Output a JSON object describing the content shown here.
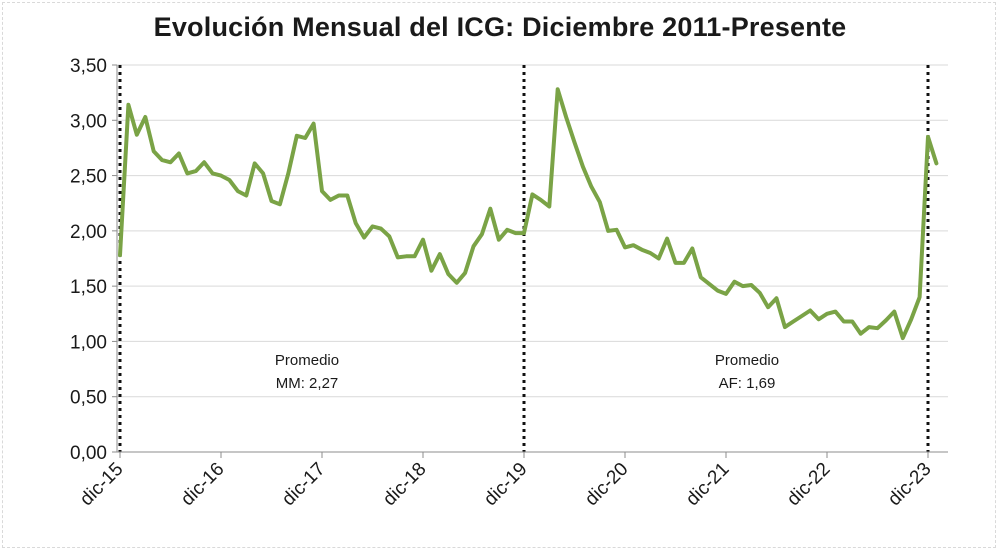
{
  "chart_data": {
    "type": "line",
    "title": "Evolución Mensual del ICG: Diciembre 2011-Presente",
    "xlabel": "",
    "ylabel": "",
    "ylim": [
      0,
      3.5
    ],
    "y_ticks": [
      "0,00",
      "0,50",
      "1,00",
      "1,50",
      "2,00",
      "2,50",
      "3,00",
      "3,50"
    ],
    "x_ticks": [
      "dic-15",
      "dic-16",
      "dic-17",
      "dic-18",
      "dic-19",
      "dic-20",
      "dic-21",
      "dic-22",
      "dic-23"
    ],
    "line_color": "#7aa346",
    "series": [
      {
        "name": "ICG",
        "start_label": "dic-15",
        "values": [
          1.78,
          3.14,
          2.87,
          3.03,
          2.72,
          2.64,
          2.62,
          2.7,
          2.52,
          2.54,
          2.62,
          2.52,
          2.5,
          2.46,
          2.36,
          2.32,
          2.61,
          2.52,
          2.27,
          2.24,
          2.52,
          2.86,
          2.84,
          2.97,
          2.36,
          2.28,
          2.32,
          2.32,
          2.07,
          1.94,
          2.04,
          2.02,
          1.95,
          1.76,
          1.77,
          1.77,
          1.92,
          1.64,
          1.79,
          1.61,
          1.53,
          1.62,
          1.86,
          1.97,
          2.2,
          1.92,
          2.01,
          1.98,
          1.98,
          2.33,
          2.28,
          2.22,
          3.28,
          3.03,
          2.8,
          2.58,
          2.4,
          2.26,
          2.0,
          2.01,
          1.85,
          1.87,
          1.83,
          1.8,
          1.75,
          1.93,
          1.71,
          1.71,
          1.84,
          1.58,
          1.52,
          1.46,
          1.43,
          1.54,
          1.5,
          1.51,
          1.44,
          1.31,
          1.39,
          1.13,
          1.18,
          1.23,
          1.28,
          1.2,
          1.25,
          1.27,
          1.18,
          1.18,
          1.07,
          1.13,
          1.12,
          1.19,
          1.27,
          1.03,
          1.2,
          1.4,
          2.85,
          2.61
        ]
      }
    ],
    "vertical_markers": [
      "dic-15",
      "dic-19",
      "dic-23"
    ],
    "annotations": [
      {
        "line1": "Promedio",
        "line2": "MM: 2,27",
        "near": "dic-17"
      },
      {
        "line1": "Promedio",
        "line2": "AF: 1,69",
        "near": "dic-21"
      }
    ]
  }
}
